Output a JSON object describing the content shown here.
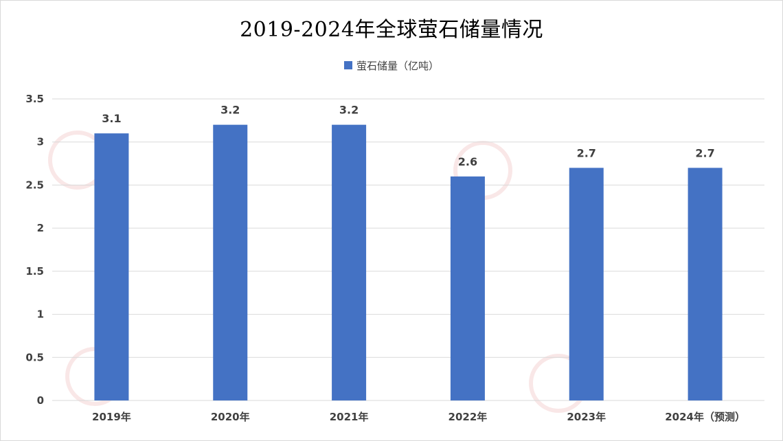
{
  "title": "2019-2024年全球萤石储量情况",
  "colors": {
    "bar": "#4472c4",
    "grid": "#d9d9d9",
    "axis_text": "#404040"
  },
  "chart_data": {
    "type": "bar",
    "title": "2019-2024年全球萤石储量情况",
    "categories": [
      "2019年",
      "2020年",
      "2021年",
      "2022年",
      "2023年",
      "2024年（预测）"
    ],
    "series": [
      {
        "name": "萤石储量（亿吨）",
        "values": [
          3.1,
          3.2,
          3.2,
          2.6,
          2.7,
          2.7
        ]
      }
    ],
    "data_labels": [
      "3.1",
      "3.2",
      "3.2",
      "2.6",
      "2.7",
      "2.7"
    ],
    "y_ticks": [
      "0",
      "0.5",
      "1",
      "1.5",
      "2",
      "2.5",
      "3",
      "3.5"
    ],
    "ylim": [
      0,
      3.5
    ],
    "grid": true,
    "legend_position": "top-center"
  }
}
